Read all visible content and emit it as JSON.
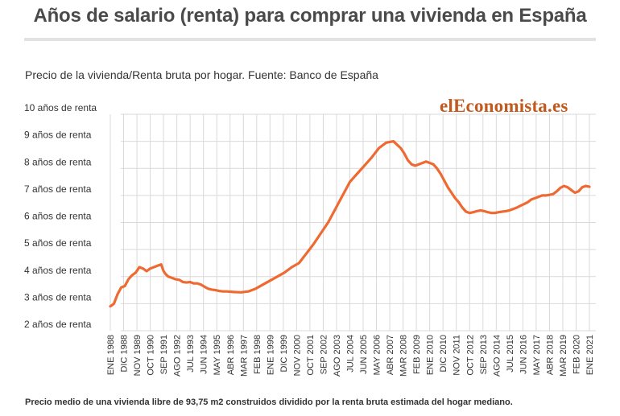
{
  "header": {
    "title": "Años de salario (renta) para comprar una vivienda en España",
    "subtitle": "Precio de la vivienda/Renta bruta por hogar. Fuente: Banco de España",
    "brand": "elEconomista.es",
    "footnote": "Precio medio de una vivienda libre de 93,75 m2 construidos dividido por la renta bruta estimada del hogar mediano."
  },
  "colors": {
    "line": "#ee6a32",
    "grid": "#d9d9d9",
    "brand": "#c25a1e"
  },
  "chart_data": {
    "type": "line",
    "title": "Años de salario (renta) para comprar una vivienda en España",
    "ylim": [
      2,
      10
    ],
    "grid": true,
    "y_ticks": [
      {
        "v": 10,
        "label": "10 años de renta"
      },
      {
        "v": 9,
        "label": "9 años de renta"
      },
      {
        "v": 8,
        "label": "8 años de renta"
      },
      {
        "v": 7,
        "label": "7 años de renta"
      },
      {
        "v": 6,
        "label": "6 años de renta"
      },
      {
        "v": 5,
        "label": "5 años de renta"
      },
      {
        "v": 4,
        "label": "4 años de renta"
      },
      {
        "v": 3,
        "label": "3 años de renta"
      },
      {
        "v": 2,
        "label": "2 años de renta"
      }
    ],
    "x_ticks": [
      {
        "label": "ENE 1988",
        "t": 1988.0
      },
      {
        "label": "DIC 1988",
        "t": 1988.917
      },
      {
        "label": "NOV 1989",
        "t": 1989.833
      },
      {
        "label": "OCT 1990",
        "t": 1990.75
      },
      {
        "label": "SEP 1991",
        "t": 1991.667
      },
      {
        "label": "AGO 1992",
        "t": 1992.583
      },
      {
        "label": "JUL 1993",
        "t": 1993.5
      },
      {
        "label": "JUN 1994",
        "t": 1994.417
      },
      {
        "label": "MAY 1995",
        "t": 1995.333
      },
      {
        "label": "ABR 1996",
        "t": 1996.25
      },
      {
        "label": "MAR 1997",
        "t": 1997.167
      },
      {
        "label": "FEB 1998",
        "t": 1998.083
      },
      {
        "label": "ENE 1999",
        "t": 1999.0
      },
      {
        "label": "DIC 1999",
        "t": 1999.917
      },
      {
        "label": "NOV 2000",
        "t": 2000.833
      },
      {
        "label": "OCT 2001",
        "t": 2001.75
      },
      {
        "label": "SEP 2002",
        "t": 2002.667
      },
      {
        "label": "AGO 2003",
        "t": 2003.583
      },
      {
        "label": "JUL 2004",
        "t": 2004.5
      },
      {
        "label": "JUN 2005",
        "t": 2005.417
      },
      {
        "label": "MAY 2006",
        "t": 2006.333
      },
      {
        "label": "ABR 2007",
        "t": 2007.25
      },
      {
        "label": "MAR 2008",
        "t": 2008.167
      },
      {
        "label": "FEB 2009",
        "t": 2009.083
      },
      {
        "label": "ENE 2010",
        "t": 2010.0
      },
      {
        "label": "DIC 2010",
        "t": 2010.917
      },
      {
        "label": "NOV 2011",
        "t": 2011.833
      },
      {
        "label": "OCT 2012",
        "t": 2012.75
      },
      {
        "label": "SEP 2013",
        "t": 2013.667
      },
      {
        "label": "AGO 2014",
        "t": 2014.583
      },
      {
        "label": "JUL 2015",
        "t": 2015.5
      },
      {
        "label": "JUN 2016",
        "t": 2016.417
      },
      {
        "label": "MAY 2017",
        "t": 2017.333
      },
      {
        "label": "ABR 2018",
        "t": 2018.25
      },
      {
        "label": "MAR 2019",
        "t": 2019.167
      },
      {
        "label": "FEB 2020",
        "t": 2020.083
      },
      {
        "label": "ENE 2021",
        "t": 2021.0
      }
    ],
    "series": [
      {
        "x": [
          1988.0,
          1988.25,
          1988.5,
          1988.75,
          1989.0,
          1989.25,
          1989.5,
          1989.75,
          1990.0,
          1990.25,
          1990.5,
          1990.75,
          1991.0,
          1991.25,
          1991.5,
          1991.67,
          1991.8,
          1992.0,
          1992.25,
          1992.5,
          1992.75,
          1993.0,
          1993.25,
          1993.5,
          1993.75,
          1994.0,
          1994.25,
          1994.5,
          1994.75,
          1995.0,
          1995.25,
          1995.5,
          1995.75,
          1996.0,
          1996.5,
          1997.0,
          1997.5,
          1998.0,
          1998.5,
          1999.0,
          1999.5,
          2000.0,
          2000.5,
          2001.0,
          2001.5,
          2002.0,
          2002.5,
          2003.0,
          2003.5,
          2004.0,
          2004.5,
          2005.0,
          2005.5,
          2006.0,
          2006.5,
          2007.0,
          2007.5,
          2007.8,
          2008.0,
          2008.25,
          2008.5,
          2008.75,
          2009.0,
          2009.25,
          2009.5,
          2009.75,
          2010.0,
          2010.25,
          2010.5,
          2010.75,
          2011.0,
          2011.25,
          2011.5,
          2011.75,
          2012.0,
          2012.25,
          2012.5,
          2012.75,
          2013.0,
          2013.25,
          2013.5,
          2013.75,
          2014.0,
          2014.25,
          2014.5,
          2014.75,
          2015.0,
          2015.25,
          2015.5,
          2015.75,
          2016.0,
          2016.25,
          2016.5,
          2016.75,
          2017.0,
          2017.25,
          2017.5,
          2017.75,
          2018.0,
          2018.25,
          2018.5,
          2018.75,
          2019.0,
          2019.25,
          2019.5,
          2019.75,
          2020.0,
          2020.25,
          2020.5,
          2020.75,
          2021.0
        ],
        "y": [
          2.9,
          3.0,
          3.35,
          3.6,
          3.65,
          3.9,
          4.05,
          4.15,
          4.35,
          4.3,
          4.2,
          4.3,
          4.35,
          4.4,
          4.45,
          4.2,
          4.1,
          4.0,
          3.95,
          3.9,
          3.88,
          3.8,
          3.78,
          3.8,
          3.75,
          3.75,
          3.7,
          3.62,
          3.55,
          3.52,
          3.5,
          3.47,
          3.45,
          3.45,
          3.43,
          3.42,
          3.45,
          3.55,
          3.7,
          3.85,
          4.0,
          4.15,
          4.35,
          4.5,
          4.85,
          5.2,
          5.6,
          6.0,
          6.5,
          7.0,
          7.5,
          7.8,
          8.1,
          8.4,
          8.75,
          8.95,
          9.0,
          8.85,
          8.75,
          8.55,
          8.3,
          8.15,
          8.1,
          8.15,
          8.2,
          8.25,
          8.2,
          8.15,
          8.0,
          7.8,
          7.55,
          7.3,
          7.1,
          6.9,
          6.75,
          6.55,
          6.4,
          6.35,
          6.38,
          6.42,
          6.45,
          6.42,
          6.38,
          6.35,
          6.35,
          6.38,
          6.4,
          6.42,
          6.45,
          6.5,
          6.55,
          6.62,
          6.68,
          6.75,
          6.85,
          6.9,
          6.95,
          7.0,
          7.0,
          7.02,
          7.05,
          7.15,
          7.28,
          7.35,
          7.3,
          7.2,
          7.1,
          7.15,
          7.3,
          7.35,
          7.32
        ]
      }
    ]
  }
}
